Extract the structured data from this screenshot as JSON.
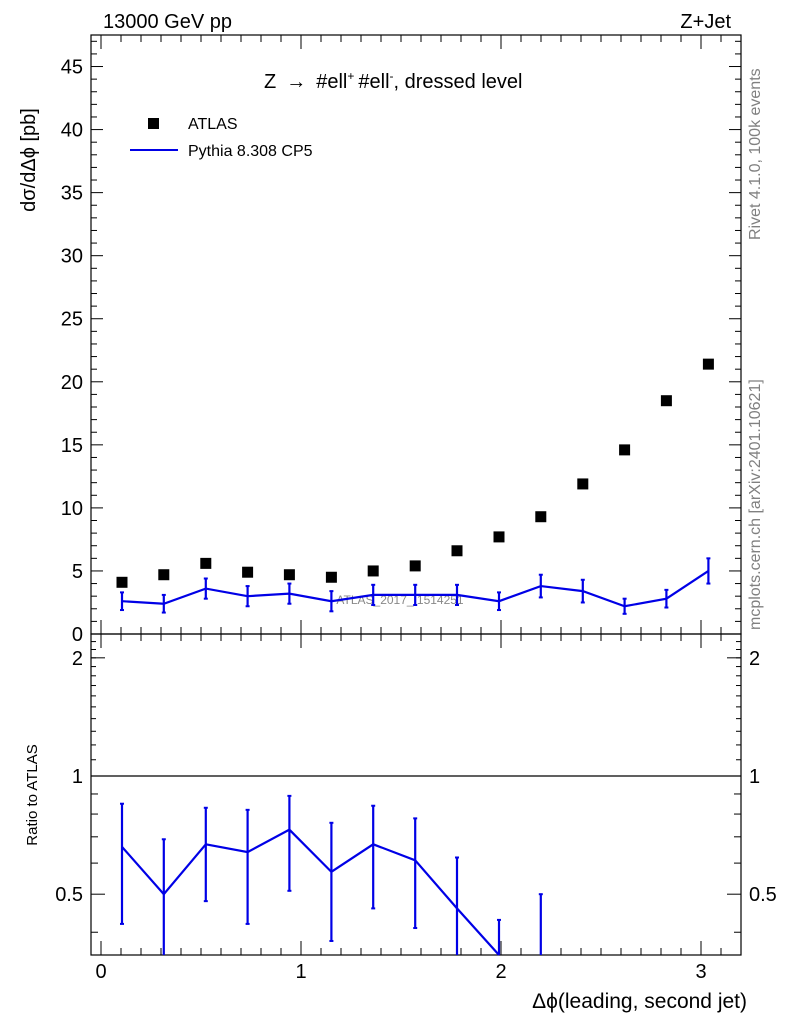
{
  "header": {
    "left_label": "13000 GeV pp",
    "right_label": "Z+Jet"
  },
  "side_labels": {
    "rivet": "Rivet 4.1.0,  100k events",
    "mcplots": "mcplots.cern.ch [arXiv:2401.10621]"
  },
  "watermark": "ATLAS_2017_I1514251",
  "colors": {
    "data": "#000000",
    "mc": "#0000e6",
    "watermark": "#888888",
    "side_text": "#808080"
  },
  "chart_data": [
    {
      "type": "scatter",
      "panel": "main",
      "title_parts": [
        "Z",
        "→",
        "#ell",
        "+",
        "#ell",
        "-",
        ", dressed level"
      ],
      "xlabel": "Δϕ(leading, second jet)",
      "ylabel": "dσ/dΔϕ [pb]",
      "xlim": [
        -0.05,
        3.2
      ],
      "ylim": [
        0,
        47.5
      ],
      "y_ticks": [
        0,
        5,
        10,
        15,
        20,
        25,
        30,
        35,
        40,
        45
      ],
      "y_tick_labels": [
        "0",
        "5",
        "10",
        "15",
        "20",
        "25",
        "30",
        "35",
        "40",
        "45"
      ],
      "legend": {
        "position": "top-left",
        "entries": [
          {
            "label": "ATLAS",
            "style": "marker-square"
          },
          {
            "label": "Pythia 8.308 CP5",
            "style": "line"
          }
        ]
      },
      "series": [
        {
          "name": "ATLAS",
          "style": "marker",
          "x": [
            0.105,
            0.314,
            0.524,
            0.733,
            0.942,
            1.152,
            1.361,
            1.571,
            1.78,
            1.99,
            2.199,
            2.409,
            2.618,
            2.827,
            3.037
          ],
          "y": [
            4.1,
            4.7,
            5.6,
            4.9,
            4.7,
            4.5,
            5.0,
            5.4,
            6.6,
            7.7,
            9.3,
            11.9,
            14.6,
            18.5,
            21.4
          ]
        },
        {
          "name": "Pythia 8.308 CP5",
          "style": "line",
          "x": [
            0.105,
            0.314,
            0.524,
            0.733,
            0.942,
            1.152,
            1.361,
            1.571,
            1.78,
            1.99,
            2.199,
            2.409,
            2.618,
            2.827,
            3.037
          ],
          "y": [
            2.6,
            2.4,
            3.6,
            3.0,
            3.2,
            2.6,
            3.1,
            3.1,
            3.1,
            2.6,
            3.8,
            3.4,
            2.2,
            2.8,
            5.0
          ],
          "err": [
            0.7,
            0.7,
            0.8,
            0.8,
            0.8,
            0.8,
            0.8,
            0.8,
            0.8,
            0.7,
            0.9,
            0.9,
            0.6,
            0.7,
            1.0
          ]
        }
      ]
    },
    {
      "type": "line",
      "panel": "ratio",
      "ylabel": "Ratio to ATLAS",
      "xlabel": "Δϕ(leading, second jet)",
      "xlim": [
        -0.05,
        3.2
      ],
      "ylim": [
        0.35,
        2.3
      ],
      "y_scale": "log",
      "reference_line": 1,
      "y_ticks": [
        0.5,
        1,
        2
      ],
      "y_tick_labels": [
        "0.5",
        "1",
        "2"
      ],
      "x_ticks": [
        0,
        1,
        2,
        3
      ],
      "x_tick_labels": [
        "0",
        "1",
        "2",
        "3"
      ],
      "series": [
        {
          "name": "Pythia 8.308 CP5 / ATLAS",
          "x": [
            0.105,
            0.314,
            0.524,
            0.733,
            0.942,
            1.152,
            1.361,
            1.571,
            1.78,
            1.99
          ],
          "y": [
            0.66,
            0.5,
            0.67,
            0.64,
            0.73,
            0.57,
            0.67,
            0.61,
            0.46,
            0.33
          ],
          "err_low": [
            0.24,
            0.18,
            0.19,
            0.22,
            0.22,
            0.19,
            0.21,
            0.2,
            0.14,
            0.1
          ],
          "err_high": [
            0.19,
            0.19,
            0.16,
            0.18,
            0.16,
            0.19,
            0.17,
            0.17,
            0.16,
            0.1
          ]
        },
        {
          "name": "extra error bar",
          "x": [
            2.199
          ],
          "y": [
            0.41
          ],
          "err_low": [
            0.1
          ],
          "err_high": [
            0.09
          ]
        }
      ]
    }
  ]
}
